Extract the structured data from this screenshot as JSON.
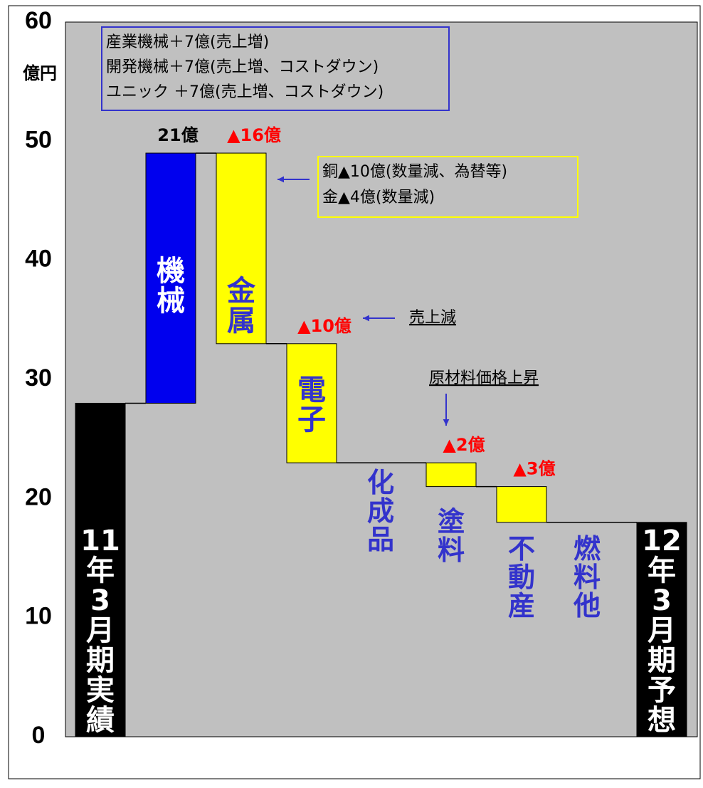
{
  "chart_data": {
    "type": "waterfall",
    "y_axis_label": "億円",
    "ylim": [
      0,
      60
    ],
    "yticks": [
      0,
      10,
      20,
      30,
      40,
      50,
      60
    ],
    "categories": [
      "11年3月期実績",
      "機械",
      "金属",
      "電子",
      "化成品",
      "塗料",
      "不動産",
      "燃料他",
      "12年3月期予想"
    ],
    "measure": [
      "absolute",
      "relative",
      "relative",
      "relative",
      "relative",
      "relative",
      "relative",
      "relative",
      "total"
    ],
    "values": [
      28,
      21,
      -16,
      -10,
      0,
      -2,
      -3,
      0,
      18
    ],
    "value_labels": [
      null,
      "21億",
      "▲16億",
      "▲10億",
      null,
      "▲2億",
      "▲3億",
      null,
      null
    ],
    "colors": [
      "#000000",
      "#0000ee",
      "#ffff00",
      "#ffff00",
      null,
      "#ffff00",
      "#ffff00",
      null,
      "#000000"
    ],
    "plot_background": "#c0c0c0",
    "annotations": [
      {
        "lines": [
          "産業機械＋7億(売上増)",
          "開発機械＋7億(売上増、コストダウン)",
          "ユニック ＋7億(売上増、コストダウン)"
        ],
        "border": "#3333cc"
      },
      {
        "lines": [
          "銅▲10億(数量減、為替等)",
          "金▲4億(数量減)"
        ],
        "border": "#ffff00"
      },
      {
        "lines": [
          "売上減"
        ]
      },
      {
        "lines": [
          "原材料価格上昇"
        ]
      }
    ]
  }
}
